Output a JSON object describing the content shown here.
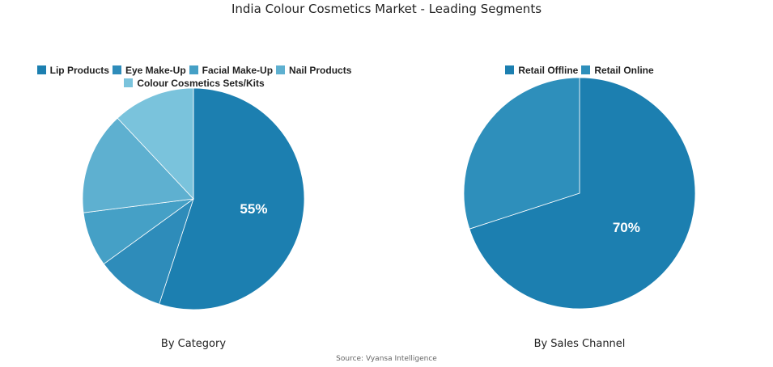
{
  "chart_data": [
    {
      "type": "pie",
      "title": "India Colour Cosmetics Market - Leading Segments",
      "subtitle": "By Category",
      "categories": [
        "Lip Products",
        "Eye Make-Up",
        "Facial Make-Up",
        "Nail Products",
        "Colour Cosmetics Sets/Kits"
      ],
      "values": [
        55,
        10,
        8,
        15,
        12
      ],
      "colors": [
        "#1c7fb0",
        "#2e8cba",
        "#45a0c6",
        "#5eb0d0",
        "#7ac3dc"
      ],
      "data_labels": [
        "55%",
        "",
        "",
        "",
        ""
      ],
      "legend_placement": "top"
    },
    {
      "type": "pie",
      "subtitle": "By Sales Channel",
      "categories": [
        "Retail Offline",
        "Retail Online"
      ],
      "values": [
        70,
        30
      ],
      "colors": [
        "#1c7fb0",
        "#2e8fbb"
      ],
      "data_labels": [
        "70%",
        ""
      ],
      "legend_placement": "top"
    }
  ],
  "source": "Source: Vyansa Intelligence"
}
